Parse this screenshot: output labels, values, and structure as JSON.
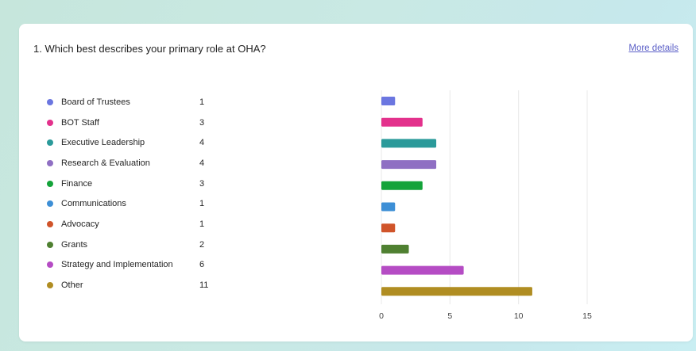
{
  "question": {
    "title": "1. Which best describes your primary role at OHA?",
    "more_details": "More details"
  },
  "chart_data": {
    "type": "bar",
    "orientation": "horizontal",
    "categories": [
      "Board of Trustees",
      "BOT Staff",
      "Executive Leadership",
      "Research & Evaluation",
      "Finance",
      "Communications",
      "Advocacy",
      "Grants",
      "Strategy and Implementation",
      "Other"
    ],
    "values": [
      1,
      3,
      4,
      4,
      3,
      1,
      1,
      2,
      6,
      11
    ],
    "colors": [
      "#6b76e0",
      "#e3318c",
      "#2b9a9a",
      "#8f6fc3",
      "#14a33a",
      "#3d8fd6",
      "#d0542a",
      "#4f8031",
      "#b54cc4",
      "#b08d22"
    ],
    "xticks": [
      "0",
      "5",
      "10",
      "15"
    ],
    "xlim": [
      0,
      15
    ],
    "grid": true,
    "legend_position": "left"
  }
}
